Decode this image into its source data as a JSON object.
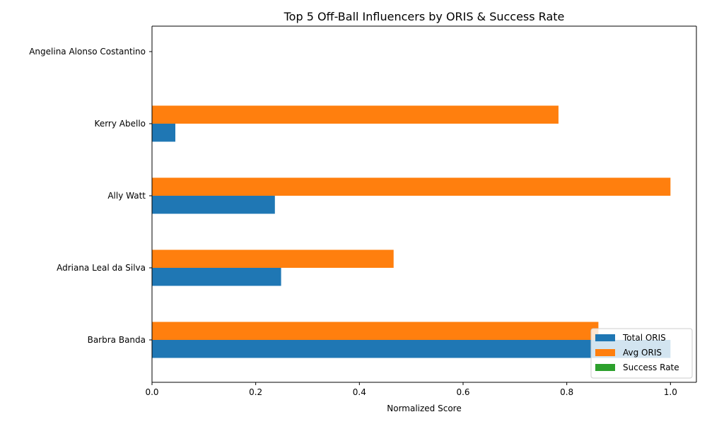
{
  "chart_data": {
    "type": "bar",
    "orientation": "horizontal",
    "title": "Top 5 Off-Ball Influencers by ORIS & Success Rate",
    "xlabel": "Normalized Score",
    "ylabel": "",
    "xlim": [
      0,
      1.05
    ],
    "xticks": [
      "0.0",
      "0.2",
      "0.4",
      "0.6",
      "0.8",
      "1.0"
    ],
    "xtick_values": [
      0,
      0.2,
      0.4,
      0.6,
      0.8,
      1.0
    ],
    "grid": false,
    "legend_position": "lower-right",
    "categories": [
      "Angelina Alonso Costantino",
      "Kerry Abello",
      "Ally Watt",
      "Adriana Leal da Silva",
      "Barbra Banda"
    ],
    "series": [
      {
        "name": "Total ORIS",
        "color": "#1f77b4",
        "values": [
          0.0,
          0.045,
          0.237,
          0.249,
          1.0
        ]
      },
      {
        "name": "Avg ORIS",
        "color": "#ff7f0e",
        "values": [
          0.0,
          0.784,
          1.0,
          0.466,
          0.861
        ]
      },
      {
        "name": "Success Rate",
        "color": "#2ca02c",
        "values": [
          0.0,
          0.0,
          0.0,
          0.0,
          0.0
        ]
      }
    ]
  }
}
